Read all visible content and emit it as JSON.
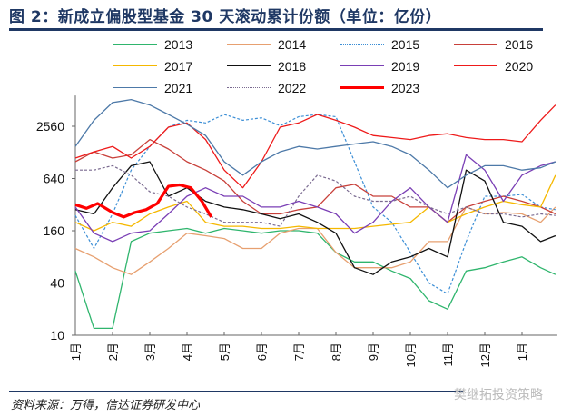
{
  "title": "图 2：新成立偏股型基金 30 天滚动累计份额（单位：亿份）",
  "source": "资料来源：万得，信达证券研发中心",
  "watermark": "樊继拓投资策略",
  "chart_data": {
    "type": "line",
    "title": "图 2：新成立偏股型基金 30 天滚动累计份额（单位：亿份）",
    "xlabel": "",
    "ylabel": "",
    "yscale": "log",
    "ylim": [
      10,
      5800
    ],
    "yticks": [
      10,
      40,
      160,
      640,
      2560
    ],
    "ytick_labels": [
      "10",
      "40",
      "160",
      "640",
      "2560"
    ],
    "xlim": [
      0,
      12.95
    ],
    "xticks": [
      0,
      1,
      2,
      3,
      4,
      5,
      6,
      7,
      8,
      9,
      10,
      11,
      12
    ],
    "xtick_labels": [
      "1月",
      "2月",
      "3月",
      "4月",
      "5月",
      "6月",
      "7月",
      "8月",
      "9月",
      "10月",
      "11月",
      "12月",
      "1月"
    ],
    "legend_position": "top",
    "x": [
      0,
      0.5,
      1,
      1.5,
      2,
      2.5,
      3,
      3.5,
      4,
      4.5,
      5,
      5.5,
      6,
      6.5,
      7,
      7.5,
      8,
      8.5,
      9,
      9.5,
      10,
      10.5,
      11,
      11.5,
      12,
      12.5,
      12.9
    ],
    "series": [
      {
        "name": "2013",
        "color": "#2fb56d",
        "dash": false,
        "width": 1.3,
        "values": [
          55,
          12,
          12,
          120,
          150,
          160,
          170,
          150,
          170,
          160,
          150,
          160,
          160,
          150,
          90,
          70,
          70,
          55,
          45,
          25,
          20,
          55,
          60,
          70,
          80,
          60,
          50
        ]
      },
      {
        "name": "2014",
        "color": "#e7a070",
        "dash": false,
        "width": 1.3,
        "values": [
          100,
          80,
          60,
          50,
          70,
          100,
          150,
          140,
          130,
          100,
          100,
          150,
          170,
          170,
          90,
          60,
          60,
          60,
          70,
          120,
          120,
          300,
          250,
          260,
          250,
          200,
          300
        ]
      },
      {
        "name": "2015",
        "color": "#3d8fd6",
        "dash": true,
        "width": 1.2,
        "values": [
          240,
          100,
          250,
          800,
          1500,
          2500,
          3000,
          2800,
          3500,
          3000,
          3200,
          2600,
          3300,
          3500,
          3300,
          1000,
          300,
          200,
          90,
          40,
          30,
          120,
          400,
          400,
          420,
          300,
          280
        ]
      },
      {
        "name": "2016",
        "color": "#c8403a",
        "dash": false,
        "width": 1.3,
        "values": [
          1000,
          1300,
          1100,
          1200,
          1800,
          1400,
          1000,
          800,
          600,
          350,
          250,
          250,
          280,
          300,
          500,
          550,
          400,
          400,
          300,
          300,
          200,
          300,
          350,
          400,
          350,
          300,
          250
        ]
      },
      {
        "name": "2017",
        "color": "#f5b800",
        "dash": false,
        "width": 1.3,
        "values": [
          200,
          160,
          200,
          180,
          250,
          300,
          350,
          200,
          180,
          180,
          170,
          170,
          180,
          170,
          170,
          170,
          180,
          190,
          200,
          300,
          200,
          250,
          300,
          350,
          320,
          300,
          700
        ]
      },
      {
        "name": "2018",
        "color": "#111111",
        "dash": false,
        "width": 1.3,
        "values": [
          280,
          250,
          500,
          900,
          1000,
          400,
          500,
          350,
          300,
          280,
          250,
          220,
          250,
          200,
          150,
          60,
          50,
          70,
          80,
          100,
          80,
          800,
          600,
          200,
          180,
          120,
          140
        ]
      },
      {
        "name": "2019",
        "color": "#7a3fb5",
        "dash": false,
        "width": 1.3,
        "values": [
          300,
          150,
          120,
          150,
          160,
          250,
          400,
          500,
          400,
          400,
          300,
          300,
          350,
          300,
          250,
          150,
          200,
          350,
          500,
          300,
          200,
          1200,
          800,
          350,
          700,
          900,
          1000
        ]
      },
      {
        "name": "2020",
        "color": "#ee1a1a",
        "dash": false,
        "width": 1.3,
        "values": [
          1100,
          1300,
          1500,
          1100,
          1500,
          2500,
          2800,
          1800,
          800,
          500,
          1000,
          2500,
          2800,
          3500,
          3000,
          2500,
          2000,
          1900,
          1800,
          2000,
          2100,
          1900,
          1800,
          1800,
          1700,
          3000,
          4500
        ]
      },
      {
        "name": "2021",
        "color": "#4d79a8",
        "dash": false,
        "width": 1.3,
        "values": [
          1500,
          3000,
          4800,
          5200,
          4500,
          3500,
          2700,
          2000,
          1000,
          700,
          1000,
          1300,
          1500,
          1400,
          1500,
          1600,
          1700,
          1500,
          1200,
          800,
          500,
          700,
          900,
          900,
          800,
          850,
          1000
        ]
      },
      {
        "name": "2022",
        "color": "#7a6a90",
        "dash": true,
        "width": 1.2,
        "values": [
          800,
          800,
          900,
          700,
          450,
          400,
          300,
          250,
          200,
          200,
          200,
          180,
          400,
          700,
          600,
          400,
          350,
          350,
          400,
          300,
          250,
          300,
          250,
          250,
          230,
          250,
          240
        ]
      },
      {
        "name": "2023",
        "color": "#ff0000",
        "dash": false,
        "width": 3.2,
        "x": [
          0,
          0.3,
          0.6,
          1,
          1.3,
          1.6,
          1.9,
          2.2,
          2.5,
          2.8,
          3.1,
          3.4,
          3.65
        ],
        "values": [
          320,
          290,
          330,
          260,
          230,
          260,
          280,
          330,
          520,
          540,
          500,
          350,
          230
        ]
      }
    ]
  }
}
